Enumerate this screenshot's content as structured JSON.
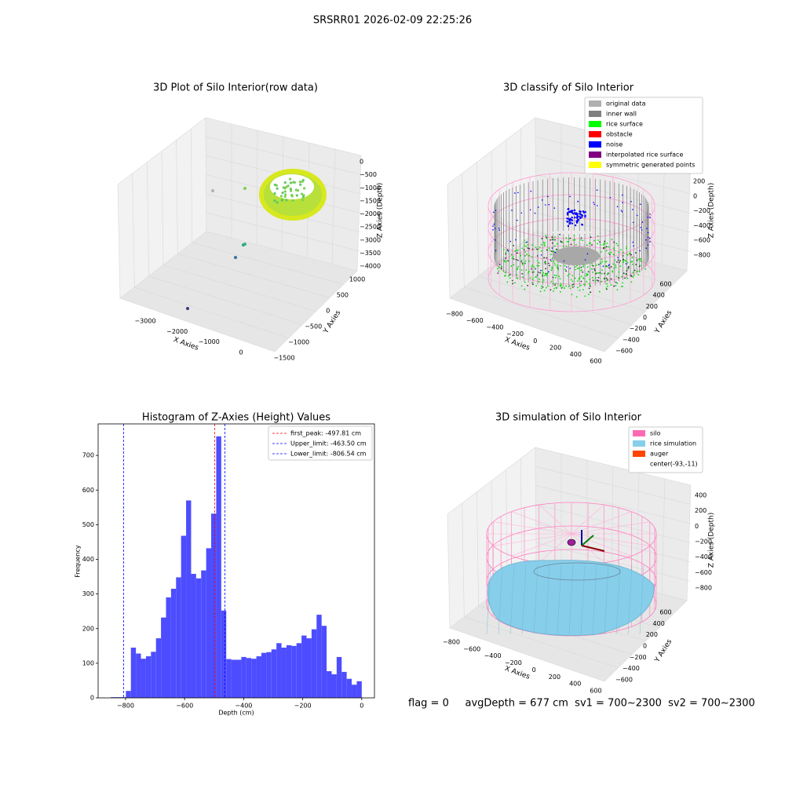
{
  "chart_data": [
    {
      "type": "scatter3d",
      "title": "3D Plot of Silo Interior(row data)",
      "xlabel": "X Axies",
      "ylabel": "Y Axies",
      "zlabel": "Z Axies (Depth)",
      "xticks": [
        {
          "value": -3000,
          "label": "−3000"
        },
        {
          "value": -2000,
          "label": "−2000"
        },
        {
          "value": -1000,
          "label": "−1000"
        },
        0
      ],
      "yticks": [
        1000,
        500,
        0,
        {
          "value": -500,
          "label": "−500"
        },
        {
          "value": -1000,
          "label": "−1000"
        },
        {
          "value": -1500,
          "label": "−1500"
        }
      ],
      "zticks": [
        0,
        {
          "value": -500,
          "label": "−500"
        },
        {
          "value": -1000,
          "label": "−1000"
        },
        {
          "value": -1500,
          "label": "−1500"
        },
        {
          "value": -2000,
          "label": "−2000"
        },
        {
          "value": -2500,
          "label": "−2500"
        },
        {
          "value": -3000,
          "label": "−3000"
        },
        {
          "value": -3500,
          "label": "−3500"
        },
        {
          "value": -4000,
          "label": "−4000"
        }
      ]
    },
    {
      "type": "scatter3d",
      "title": "3D classify of Silo Interior",
      "xlabel": "X Axies",
      "ylabel": "Y Axies",
      "zlabel": "Z Axies (Depth)",
      "legend": [
        {
          "name": "original data",
          "color": "#b0b0b0"
        },
        {
          "name": "inner wall",
          "color": "#808080"
        },
        {
          "name": "rice surface",
          "color": "#00ff00"
        },
        {
          "name": "obstacle",
          "color": "#ff0000"
        },
        {
          "name": "noise",
          "color": "#0000ff"
        },
        {
          "name": "interpolated rice surface",
          "color": "#800080"
        },
        {
          "name": "symmetric generated points",
          "color": "#ffff00"
        }
      ],
      "xticks": [
        {
          "value": -800,
          "label": "−800"
        },
        {
          "value": -600,
          "label": "−600"
        },
        {
          "value": -400,
          "label": "−400"
        },
        {
          "value": -200,
          "label": "−200"
        },
        0,
        200,
        400,
        600
      ],
      "yticks": [
        {
          "value": -600,
          "label": "−600"
        },
        {
          "value": -400,
          "label": "−400"
        },
        {
          "value": -200,
          "label": "−200"
        },
        0,
        200,
        400,
        600
      ],
      "zticks": [
        200,
        0,
        {
          "value": -200,
          "label": "−200"
        },
        {
          "value": -400,
          "label": "−400"
        },
        {
          "value": -600,
          "label": "−600"
        },
        {
          "value": -800,
          "label": "−800"
        }
      ]
    },
    {
      "type": "histogram",
      "title": "Histogram of Z-Axies (Height) Values",
      "xlabel": "Depth (cm)",
      "ylabel": "Frequency",
      "color": "#4d4dff",
      "bins": [
        -850,
        -833,
        -816,
        -799,
        -782,
        -765,
        -748,
        -731,
        -714,
        -697,
        -680,
        -663,
        -646,
        -629,
        -612,
        -595,
        -578,
        -561,
        -544,
        -527,
        -510,
        -493,
        -476,
        -459,
        -442,
        -425,
        -408,
        -391,
        -374,
        -357,
        -340,
        -323,
        -306,
        -289,
        -272,
        -255,
        -238,
        -221,
        -204,
        -187,
        -170,
        -153,
        -136,
        -119,
        -102,
        -85,
        -68,
        -51,
        -34,
        -17,
        0
      ],
      "counts": [
        2,
        2,
        2,
        20,
        145,
        128,
        113,
        120,
        133,
        172,
        232,
        290,
        315,
        348,
        468,
        570,
        358,
        345,
        368,
        432,
        532,
        755,
        252,
        112,
        110,
        110,
        118,
        115,
        113,
        120,
        130,
        132,
        140,
        158,
        145,
        152,
        150,
        158,
        180,
        172,
        198,
        240,
        208,
        77,
        68,
        118,
        75,
        55,
        38,
        48
      ],
      "xlim": [
        -893,
        43
      ],
      "ylim": [
        0,
        791
      ],
      "xticks": [
        {
          "value": -800,
          "label": "−800"
        },
        {
          "value": -600,
          "label": "−600"
        },
        {
          "value": -400,
          "label": "−400"
        },
        {
          "value": -200,
          "label": "−200"
        },
        0
      ],
      "yticks": [
        0,
        100,
        200,
        300,
        400,
        500,
        600,
        700
      ],
      "lines": [
        {
          "label": "first_peak: -497.81 cm",
          "value": -497.81,
          "color": "#ff0000"
        },
        {
          "label": "Upper_limit: -463.50 cm",
          "value": -463.5,
          "color": "#0000ff"
        },
        {
          "label": "Lower_limit: -806.54 cm",
          "value": -806.54,
          "color": "#0000ff"
        }
      ],
      "legend_position": "upper right"
    },
    {
      "type": "surface3d",
      "title": "3D simulation of Silo Interior",
      "xlabel": "X Axies",
      "ylabel": "Y Axies",
      "zlabel": "Z Axies (Depth)",
      "legend": [
        {
          "name": "silo",
          "color": "#ff69b4"
        },
        {
          "name": "rice simulation",
          "color": "#87ceeb"
        },
        {
          "name": "auger",
          "color": "#ff4500"
        },
        {
          "name": "center(-93,-11)",
          "color": "#ffffff"
        }
      ],
      "xticks": [
        {
          "value": -800,
          "label": "−800"
        },
        {
          "value": -600,
          "label": "−600"
        },
        {
          "value": -400,
          "label": "−400"
        },
        {
          "value": -200,
          "label": "−200"
        },
        0,
        200,
        400,
        600
      ],
      "yticks": [
        {
          "value": -600,
          "label": "−600"
        },
        {
          "value": -400,
          "label": "−400"
        },
        {
          "value": -200,
          "label": "−200"
        },
        0,
        200,
        400,
        600
      ],
      "zticks": [
        400,
        200,
        0,
        {
          "value": -200,
          "label": "−200"
        },
        {
          "value": -400,
          "label": "−400"
        },
        {
          "value": -600,
          "label": "−600"
        },
        {
          "value": -800,
          "label": "−800"
        }
      ]
    }
  ],
  "suptitle": "SRSRR01 2026-02-09 22:25:26",
  "status_text": "flag = 0     avgDepth = 677 cm  sv1 = 700~2300  sv2 = 700~2300"
}
